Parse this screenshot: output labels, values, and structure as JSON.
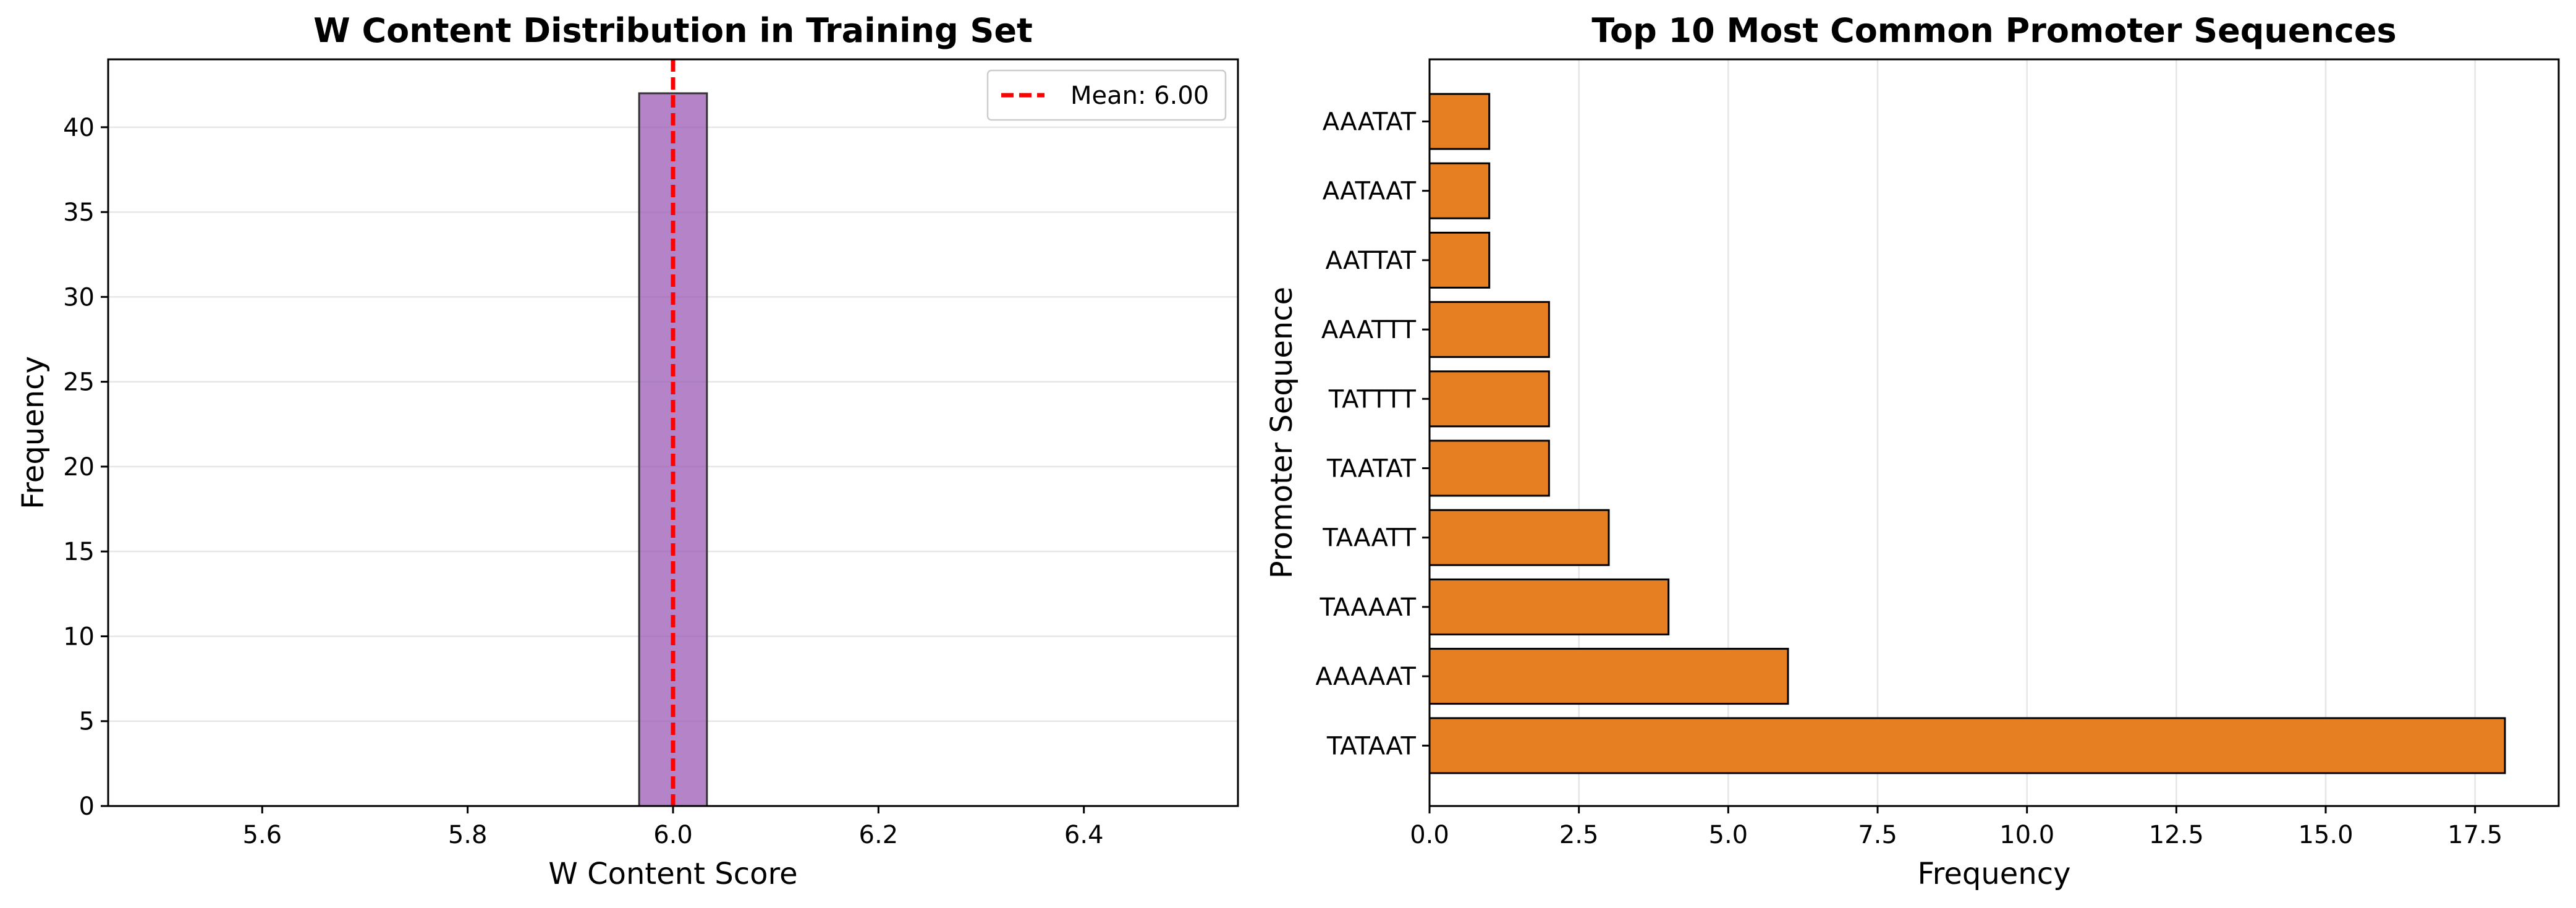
{
  "chart_data": [
    {
      "type": "bar",
      "title": "W Content Distribution in Training Set",
      "xlabel": "W Content Score",
      "ylabel": "Frequency",
      "xlim": [
        5.45,
        6.55
      ],
      "ylim": [
        0,
        44
      ],
      "xticks": [
        5.6,
        5.8,
        6.0,
        6.2,
        6.4
      ],
      "xtick_labels": [
        "5.6",
        "5.8",
        "6.0",
        "6.2",
        "6.4"
      ],
      "yticks": [
        0,
        5,
        10,
        15,
        20,
        25,
        30,
        35,
        40
      ],
      "ytick_labels": [
        "0",
        "5",
        "10",
        "15",
        "20",
        "25",
        "30",
        "35",
        "40"
      ],
      "bins": [
        {
          "start": 5.967,
          "end": 6.033,
          "value": 42
        }
      ],
      "baseline_range": [
        5.5,
        6.5
      ],
      "mean_line": {
        "value": 6.0,
        "label": "Mean: 6.00",
        "color": "#ff0000",
        "style": "dashed"
      },
      "bar_color": "#9b59b6",
      "grid": "y",
      "legend_position": "top-right"
    },
    {
      "type": "bar",
      "orientation": "horizontal",
      "title": "Top 10 Most Common Promoter Sequences",
      "xlabel": "Frequency",
      "ylabel": "Promoter Sequence",
      "xlim": [
        0,
        18.9
      ],
      "xticks": [
        0,
        2.5,
        5,
        7.5,
        10,
        12.5,
        15,
        17.5
      ],
      "xtick_labels": [
        "0.0",
        "2.5",
        "5.0",
        "7.5",
        "10.0",
        "12.5",
        "15.0",
        "17.5"
      ],
      "categories": [
        "TATAAT",
        "AAAAAT",
        "TAAAAT",
        "TAAATT",
        "TAATAT",
        "TATTTT",
        "AAATTT",
        "AATTAT",
        "AATAAT",
        "AAATAT"
      ],
      "values": [
        18,
        6,
        4,
        3,
        2,
        2,
        2,
        1,
        1,
        1
      ],
      "bar_color": "#e67e22",
      "grid": "x"
    }
  ]
}
